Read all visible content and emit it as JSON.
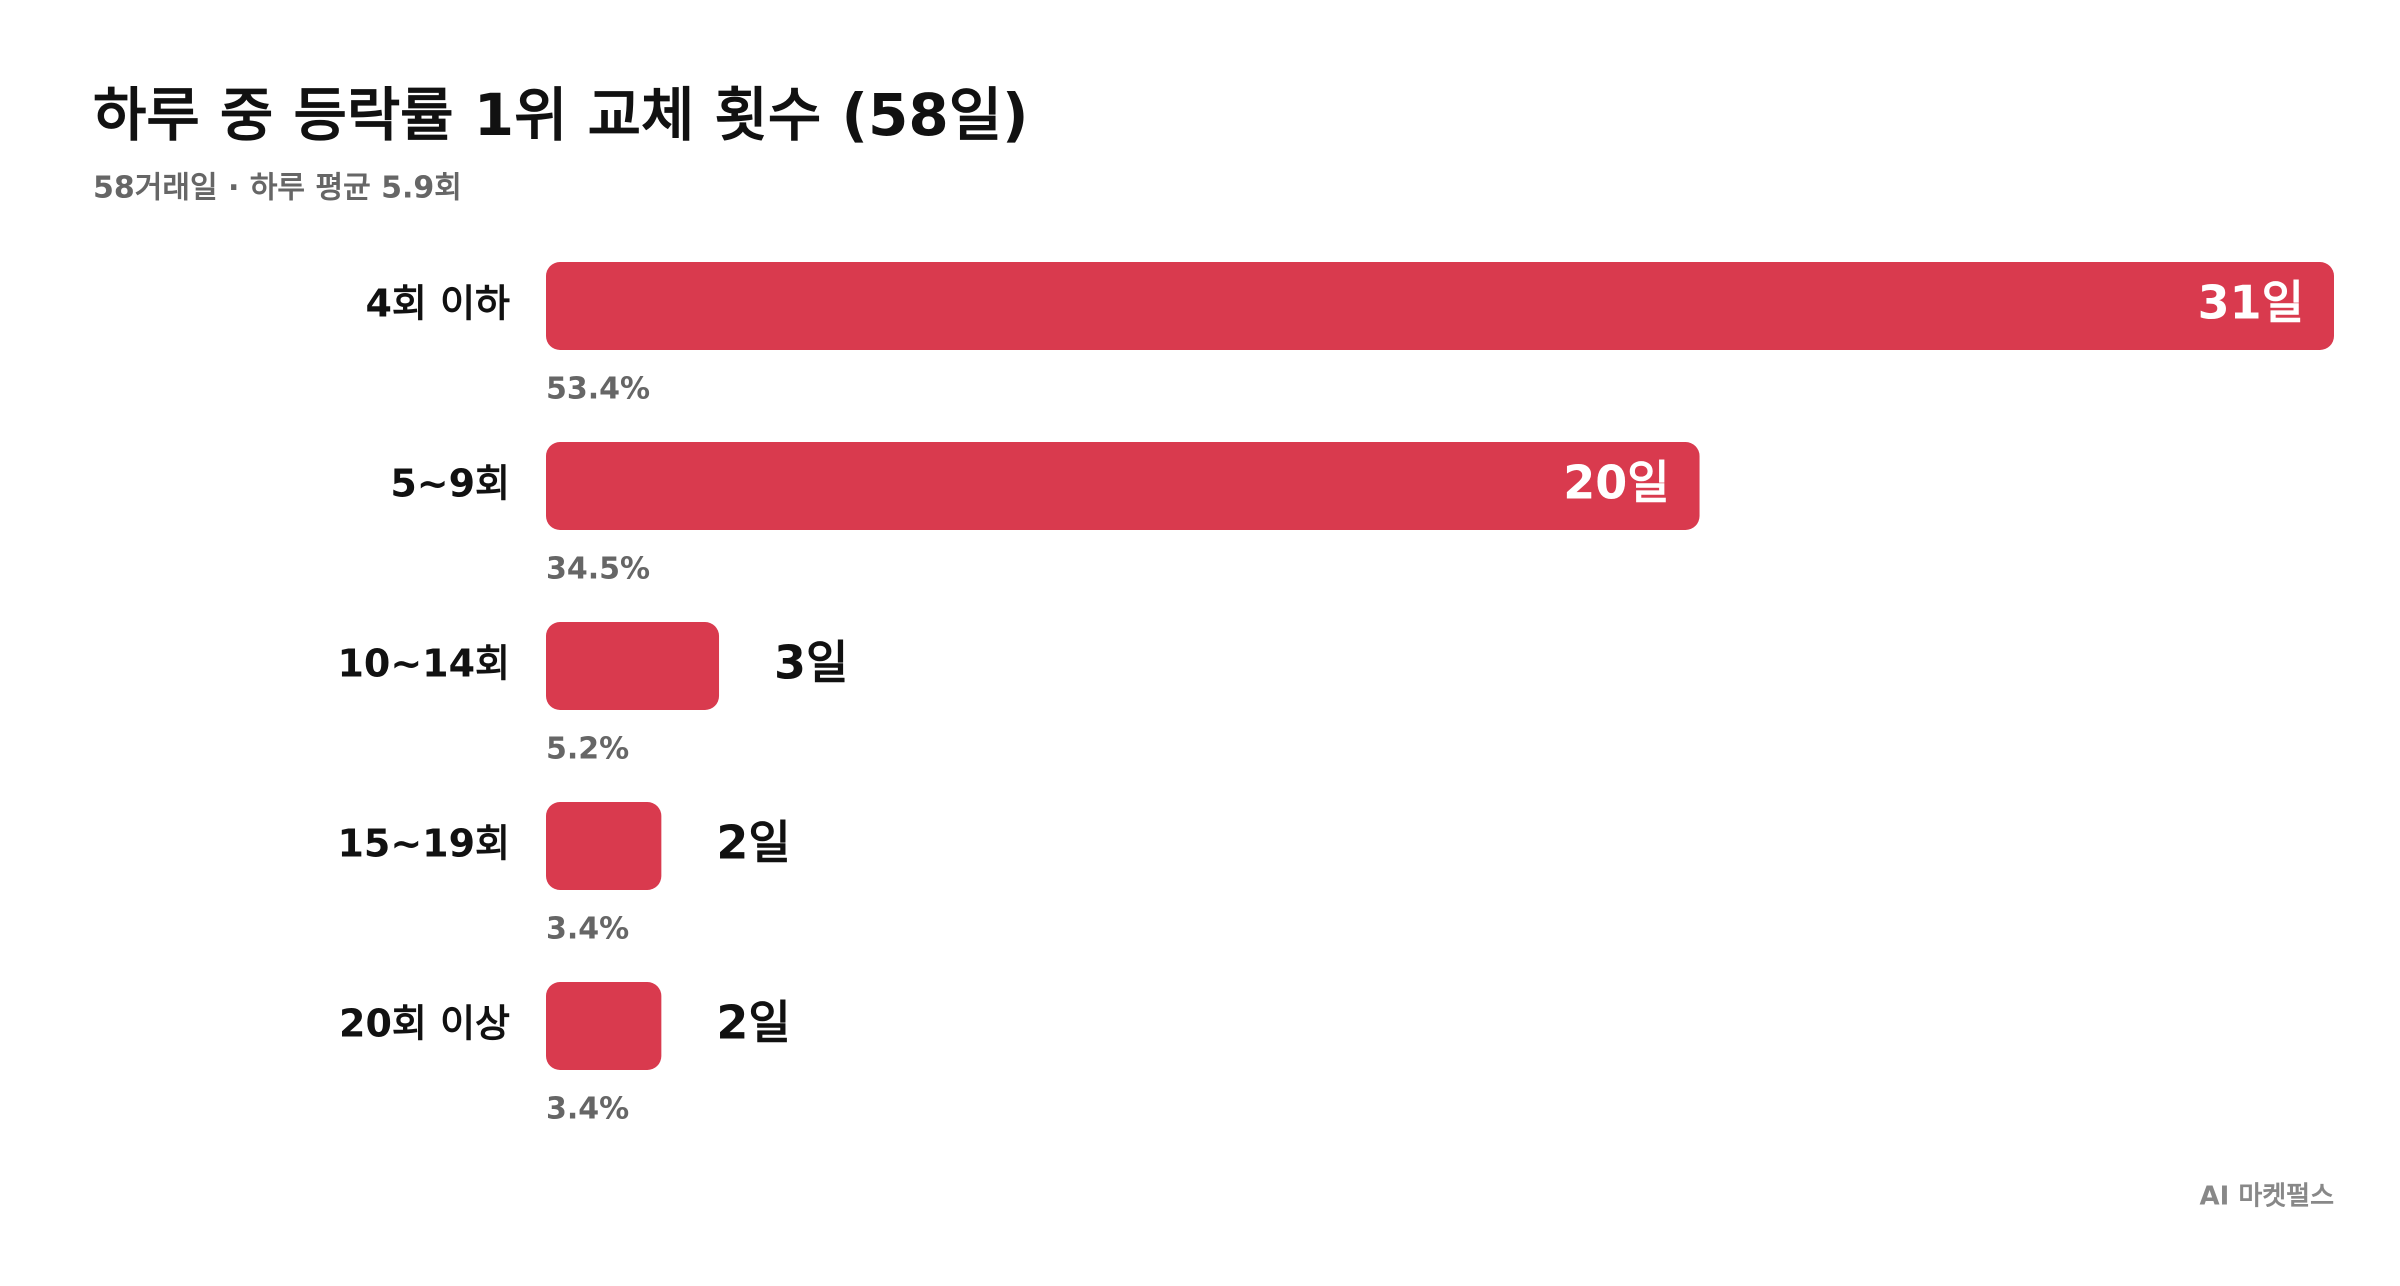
{
  "chart_data": {
    "type": "hbar",
    "title": "하루 중 등락률 1위 교체 횟수 (58일)",
    "subtitle": "58거래일 · 하루 평균 5.9회",
    "categories": [
      "4회 이하",
      "5~9회",
      "10~14회",
      "15~19회",
      "20회 이상"
    ],
    "values": [
      31,
      20,
      3,
      2,
      2
    ],
    "value_labels": [
      "31일",
      "20일",
      "3일",
      "2일",
      "2일"
    ],
    "percent_labels": [
      "53.4%",
      "34.5%",
      "5.2%",
      "3.4%",
      "3.4%"
    ],
    "color": "#d93a4e",
    "source": "AI 마켓펄스"
  }
}
